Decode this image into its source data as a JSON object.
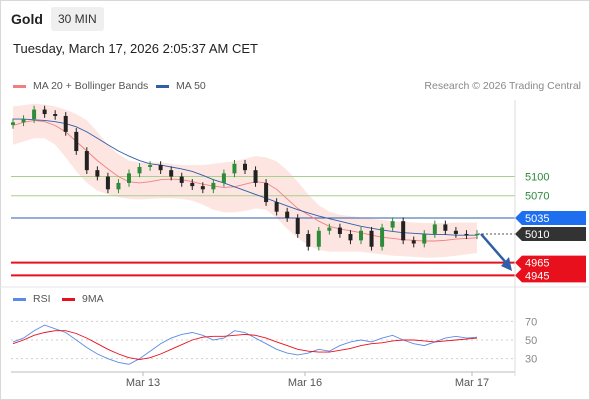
{
  "header": {
    "instrument": "Gold",
    "timeframe": "30 MIN",
    "datetime": "Tuesday, March 17, 2026 2:05:37 AM CET",
    "credit": "Research © 2026 Trading Central"
  },
  "colors": {
    "ma20": "#f08080",
    "bands_fill": "#fde0dd",
    "ma50": "#2f5fa8",
    "resistance": "#a8d08a",
    "pivot": "#2f5fa8",
    "pivot_label": "#1e6ff0",
    "support": "#e8101c",
    "last": "#333333",
    "bull": "#2e8b3a",
    "bear": "#222222",
    "rsi": "#5b8be6",
    "rsi_ma": "#e8101c"
  },
  "legend": {
    "ma20": "MA 20 + Bollinger Bands",
    "ma50": "MA 50",
    "rsi": "RSI",
    "rsi_ma": "9MA"
  },
  "chart_data": [
    {
      "type": "line",
      "title": "",
      "description_levels": "price chart with key levels",
      "y_axis_hidden": true,
      "ylim": [
        4930,
        5220
      ],
      "x_ticks": [
        "Mar 13",
        "Mar 16",
        "Mar 17"
      ],
      "levels": [
        {
          "label": "5100",
          "value": 5100,
          "kind": "resistance"
        },
        {
          "label": "5070",
          "value": 5070,
          "kind": "resistance"
        },
        {
          "label": "5035",
          "value": 5035,
          "kind": "pivot"
        },
        {
          "label": "5010",
          "value": 5010,
          "kind": "last"
        },
        {
          "label": "4965",
          "value": 4965,
          "kind": "support"
        },
        {
          "label": "4945",
          "value": 4945,
          "kind": "support"
        }
      ],
      "series": [
        {
          "name": "MA 20",
          "values": [
            5180,
            5185,
            5188,
            5186,
            5180,
            5170,
            5155,
            5140,
            5125,
            5112,
            5100,
            5092,
            5090,
            5092,
            5095,
            5096,
            5095,
            5092,
            5088,
            5085,
            5083,
            5084,
            5088,
            5092,
            5090,
            5080,
            5065,
            5050,
            5040,
            5030,
            5022,
            5018,
            5015,
            5012,
            5008,
            5005,
            5003,
            5001,
            5000,
            4999,
            4999,
            5000,
            5002,
            5003,
            5004
          ]
        },
        {
          "name": "MA 50",
          "values": [
            5190,
            5190,
            5189,
            5188,
            5186,
            5183,
            5178,
            5170,
            5160,
            5150,
            5140,
            5132,
            5125,
            5120,
            5118,
            5115,
            5112,
            5108,
            5102,
            5095,
            5090,
            5084,
            5078,
            5072,
            5066,
            5060,
            5054,
            5048,
            5043,
            5038,
            5034,
            5030,
            5026,
            5022,
            5019,
            5016,
            5014,
            5012,
            5011,
            5010,
            5009,
            5009,
            5008,
            5008,
            5008
          ]
        },
        {
          "name": "Upper Band",
          "values": [
            5210,
            5212,
            5214,
            5213,
            5210,
            5205,
            5198,
            5188,
            5170,
            5150,
            5135,
            5125,
            5122,
            5122,
            5122,
            5120,
            5118,
            5118,
            5118,
            5120,
            5122,
            5124,
            5128,
            5132,
            5130,
            5124,
            5110,
            5092,
            5072,
            5055,
            5045,
            5040,
            5038,
            5036,
            5034,
            5032,
            5030,
            5029,
            5028,
            5027,
            5027,
            5027,
            5028,
            5028,
            5028
          ]
        },
        {
          "name": "Lower Band",
          "values": [
            5150,
            5155,
            5160,
            5160,
            5150,
            5130,
            5108,
            5090,
            5078,
            5072,
            5068,
            5065,
            5064,
            5065,
            5066,
            5066,
            5065,
            5062,
            5056,
            5048,
            5044,
            5044,
            5046,
            5050,
            5048,
            5035,
            5018,
            5004,
            4992,
            4985,
            4982,
            4982,
            4982,
            4982,
            4980,
            4978,
            4976,
            4975,
            4974,
            4973,
            4973,
            4974,
            4976,
            4978,
            4980
          ]
        },
        {
          "name": "Close",
          "values": [
            5185,
            5190,
            5205,
            5198,
            5195,
            5170,
            5140,
            5110,
            5100,
            5080,
            5090,
            5105,
            5115,
            5118,
            5110,
            5100,
            5090,
            5085,
            5080,
            5090,
            5105,
            5120,
            5110,
            5090,
            5060,
            5045,
            5035,
            5010,
            4990,
            5015,
            5020,
            5010,
            5000,
            5015,
            4990,
            5020,
            5030,
            5000,
            4995,
            5010,
            5025,
            5015,
            5010,
            5008,
            5010
          ]
        }
      ]
    },
    {
      "type": "line",
      "title": "",
      "ylim": [
        20,
        80
      ],
      "y_ticks": [
        70,
        50,
        30
      ],
      "series": [
        {
          "name": "RSI",
          "values": [
            48,
            52,
            60,
            66,
            62,
            58,
            50,
            42,
            35,
            30,
            26,
            24,
            30,
            38,
            46,
            52,
            56,
            58,
            55,
            50,
            52,
            60,
            58,
            52,
            46,
            40,
            36,
            34,
            36,
            40,
            38,
            44,
            48,
            50,
            48,
            52,
            55,
            50,
            46,
            44,
            48,
            52,
            54,
            52,
            53
          ]
        },
        {
          "name": "9MA",
          "values": [
            46,
            50,
            55,
            58,
            60,
            60,
            57,
            52,
            46,
            40,
            35,
            31,
            29,
            31,
            35,
            40,
            45,
            50,
            53,
            54,
            54,
            55,
            56,
            55,
            52,
            48,
            44,
            40,
            38,
            37,
            37,
            39,
            41,
            44,
            46,
            47,
            49,
            50,
            50,
            49,
            48,
            49,
            50,
            51,
            52
          ]
        }
      ]
    }
  ]
}
